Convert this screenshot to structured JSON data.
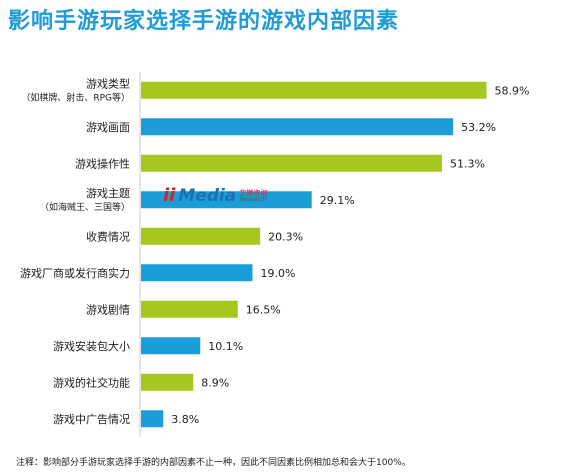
{
  "title": "影响手游玩家选择手游的游戏内部因素",
  "note": "注释：影响部分手游玩家选择手游的内部因素不止一种，因此不同因素比例相加总和会大于100%。",
  "watermark": {
    "logo": "ii",
    "media": "Media",
    "cn": "艾媒咨询",
    "en": "Research"
  },
  "colors": {
    "green": "#a6c81e",
    "blue": "#1a9ed9",
    "title": "#1f9bd7"
  },
  "chart_data": {
    "type": "bar",
    "orientation": "horizontal",
    "categories": [
      "游戏类型\n（如棋牌、射击、RPG等）",
      "游戏画面",
      "游戏操作性",
      "游戏主题\n（如海贼王、三国等）",
      "收费情况",
      "游戏厂商或发行商实力",
      "游戏剧情",
      "游戏安装包大小",
      "游戏的社交功能",
      "游戏中广告情况"
    ],
    "values": [
      58.9,
      53.2,
      51.3,
      29.1,
      20.3,
      19.0,
      16.5,
      10.1,
      8.9,
      3.8
    ],
    "value_labels": [
      "58.9%",
      "53.2%",
      "51.3%",
      "29.1%",
      "20.3%",
      "19.0%",
      "16.5%",
      "10.1%",
      "8.9%",
      "3.8%"
    ],
    "bar_colors": [
      "green",
      "blue",
      "green",
      "blue",
      "green",
      "blue",
      "green",
      "blue",
      "green",
      "blue"
    ],
    "xlim": [
      0,
      60
    ],
    "grid": false,
    "legend": "none"
  }
}
